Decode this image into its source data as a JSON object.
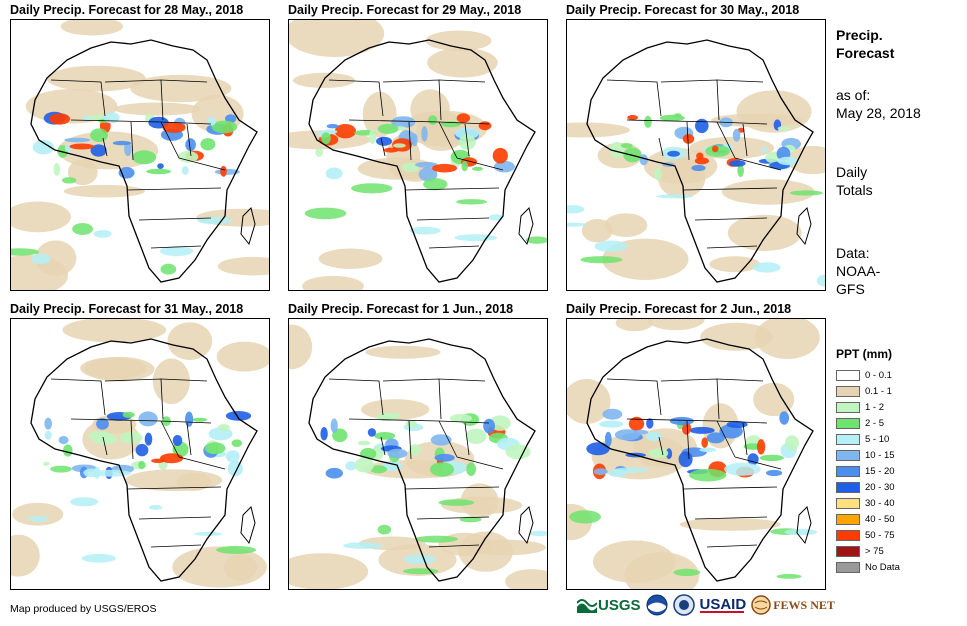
{
  "panels": [
    {
      "title": "Daily Precip. Forecast for 28 May., 2018",
      "seed": 3
    },
    {
      "title": "Daily Precip. Forecast for 29 May., 2018",
      "seed": 7
    },
    {
      "title": "Daily Precip. Forecast for 30 May., 2018",
      "seed": 11
    },
    {
      "title": "Daily Precip. Forecast for 31 May., 2018",
      "seed": 17
    },
    {
      "title": "Daily Precip. Forecast for 1 Jun., 2018",
      "seed": 23
    },
    {
      "title": "Daily Precip. Forecast for 2 Jun., 2018",
      "seed": 29
    }
  ],
  "sidebar": {
    "heading_line1": "Precip.",
    "heading_line2": "Forecast",
    "asof_label": "as of:",
    "asof_date": "May 28, 2018",
    "daily_line1": "Daily",
    "daily_line2": "Totals",
    "data_line1": "Data:",
    "data_line2": "NOAA-",
    "data_line3": "GFS"
  },
  "legend": {
    "title": "PPT (mm)",
    "items": [
      {
        "label": "0 - 0.1",
        "color": "#ffffff"
      },
      {
        "label": "0.1 - 1",
        "color": "#e6d3b3"
      },
      {
        "label": "1 - 2",
        "color": "#c0f5c0"
      },
      {
        "label": "2 - 5",
        "color": "#6fe36f"
      },
      {
        "label": "5 - 10",
        "color": "#b4f0f5"
      },
      {
        "label": "10 - 15",
        "color": "#7fb6f0"
      },
      {
        "label": "15 - 20",
        "color": "#4a8ef0"
      },
      {
        "label": "20 - 30",
        "color": "#1f5fe6"
      },
      {
        "label": "30 - 40",
        "color": "#ffe080"
      },
      {
        "label": "40 - 50",
        "color": "#ffa500"
      },
      {
        "label": "50 - 75",
        "color": "#ff3c00"
      },
      {
        "label": "> 75",
        "color": "#a01414"
      },
      {
        "label": "No Data",
        "color": "#999999"
      }
    ]
  },
  "footer": {
    "credit": "Map produced by USGS/EROS"
  },
  "logos": {
    "usgs": "USGS",
    "usaid": "USAID",
    "fewsnet": "FEWS NET"
  }
}
